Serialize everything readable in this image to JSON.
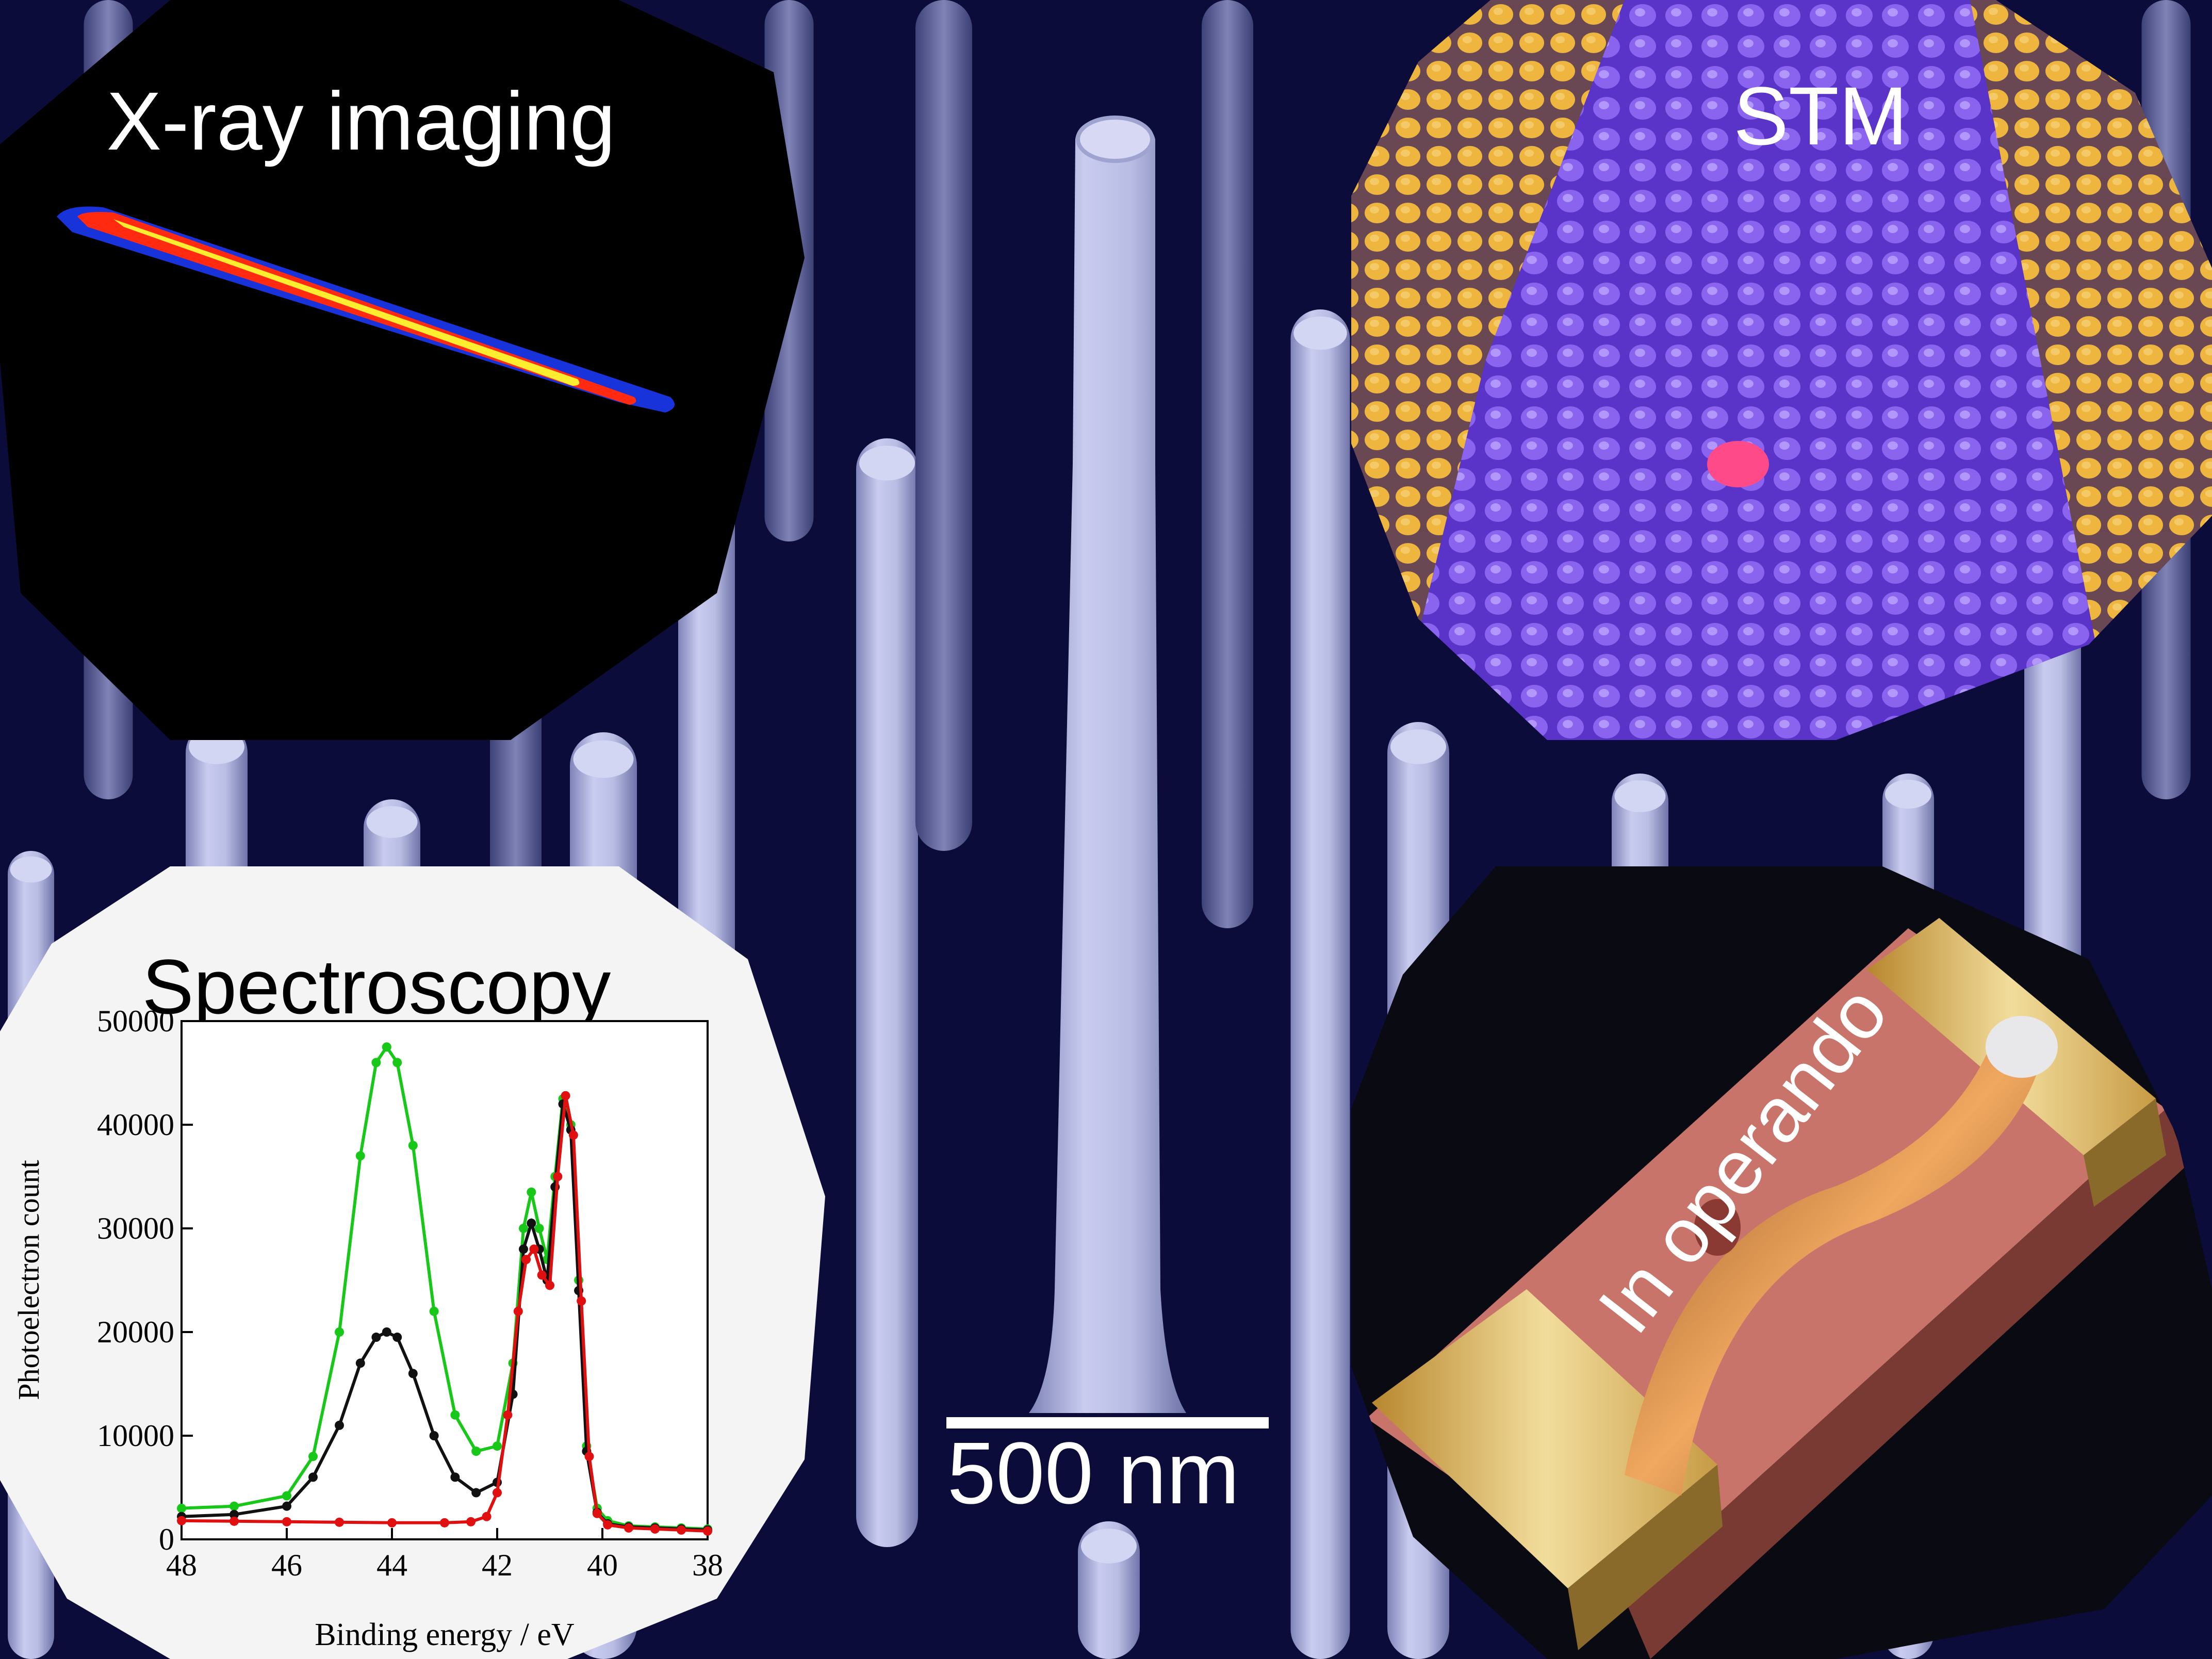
{
  "panels": {
    "xray": {
      "title": "X-ray imaging"
    },
    "stm": {
      "title": "STM"
    },
    "spectroscopy": {
      "title": "Spectroscopy"
    },
    "operando": {
      "title": "In operando"
    }
  },
  "scale_bar": {
    "label": "500 nm"
  },
  "colors": {
    "background": "#0c0c3a",
    "nanowire": "#b3b7dd",
    "stm_surface": "#6a3cd6",
    "stm_edge": "#e0a12a",
    "operando_substrate": "#c9746b",
    "spectrum_green": "#18c818",
    "spectrum_black": "#111111",
    "spectrum_red": "#e01010"
  },
  "chart_data": {
    "type": "scatter",
    "xlabel": "Binding energy / eV",
    "ylabel": "Photoelectron count",
    "xlim": [
      48,
      38
    ],
    "ylim": [
      0,
      50000
    ],
    "x_ticks": [
      48,
      46,
      44,
      42,
      40,
      38
    ],
    "y_ticks": [
      0,
      10000,
      20000,
      30000,
      40000,
      50000
    ],
    "grid": false,
    "series": [
      {
        "color": "#18c818",
        "x": [
          48,
          47,
          46,
          45.5,
          45,
          44.6,
          44.3,
          44.1,
          43.9,
          43.6,
          43.2,
          42.8,
          42.4,
          42.0,
          41.7,
          41.5,
          41.35,
          41.2,
          41.05,
          40.9,
          40.75,
          40.6,
          40.45,
          40.3,
          40.1,
          39.9,
          39.5,
          39,
          38.5,
          38
        ],
        "y": [
          3000,
          3200,
          4200,
          8000,
          20000,
          37000,
          46000,
          47500,
          46000,
          38000,
          22000,
          12000,
          8500,
          9000,
          17000,
          30000,
          33500,
          30000,
          27000,
          35000,
          42500,
          40000,
          25000,
          9000,
          3000,
          1800,
          1300,
          1200,
          1100,
          1000
        ]
      },
      {
        "color": "#111111",
        "x": [
          48,
          47,
          46,
          45.5,
          45,
          44.6,
          44.3,
          44.1,
          43.9,
          43.6,
          43.2,
          42.8,
          42.4,
          42.0,
          41.7,
          41.5,
          41.35,
          41.2,
          41.05,
          40.9,
          40.75,
          40.6,
          40.45,
          40.3,
          40.1,
          39.9,
          39.5,
          39,
          38.5,
          38
        ],
        "y": [
          2200,
          2400,
          3200,
          6000,
          11000,
          17000,
          19500,
          20000,
          19500,
          16000,
          10000,
          6000,
          4500,
          5500,
          14000,
          28000,
          30500,
          28000,
          25000,
          34000,
          42000,
          39500,
          24000,
          8500,
          2600,
          1500,
          1200,
          1100,
          1000,
          900
        ]
      },
      {
        "color": "#e01010",
        "x": [
          48,
          47,
          46,
          45,
          44,
          43,
          42.5,
          42.2,
          42.0,
          41.8,
          41.6,
          41.45,
          41.3,
          41.15,
          41.0,
          40.85,
          40.7,
          40.55,
          40.4,
          40.25,
          40.1,
          39.9,
          39.5,
          39,
          38.5,
          38
        ],
        "y": [
          1800,
          1750,
          1700,
          1650,
          1600,
          1600,
          1700,
          2200,
          4500,
          12000,
          22000,
          27000,
          28000,
          25500,
          24500,
          35000,
          42800,
          39000,
          23000,
          8000,
          2500,
          1400,
          1100,
          1000,
          900,
          800
        ]
      }
    ]
  }
}
